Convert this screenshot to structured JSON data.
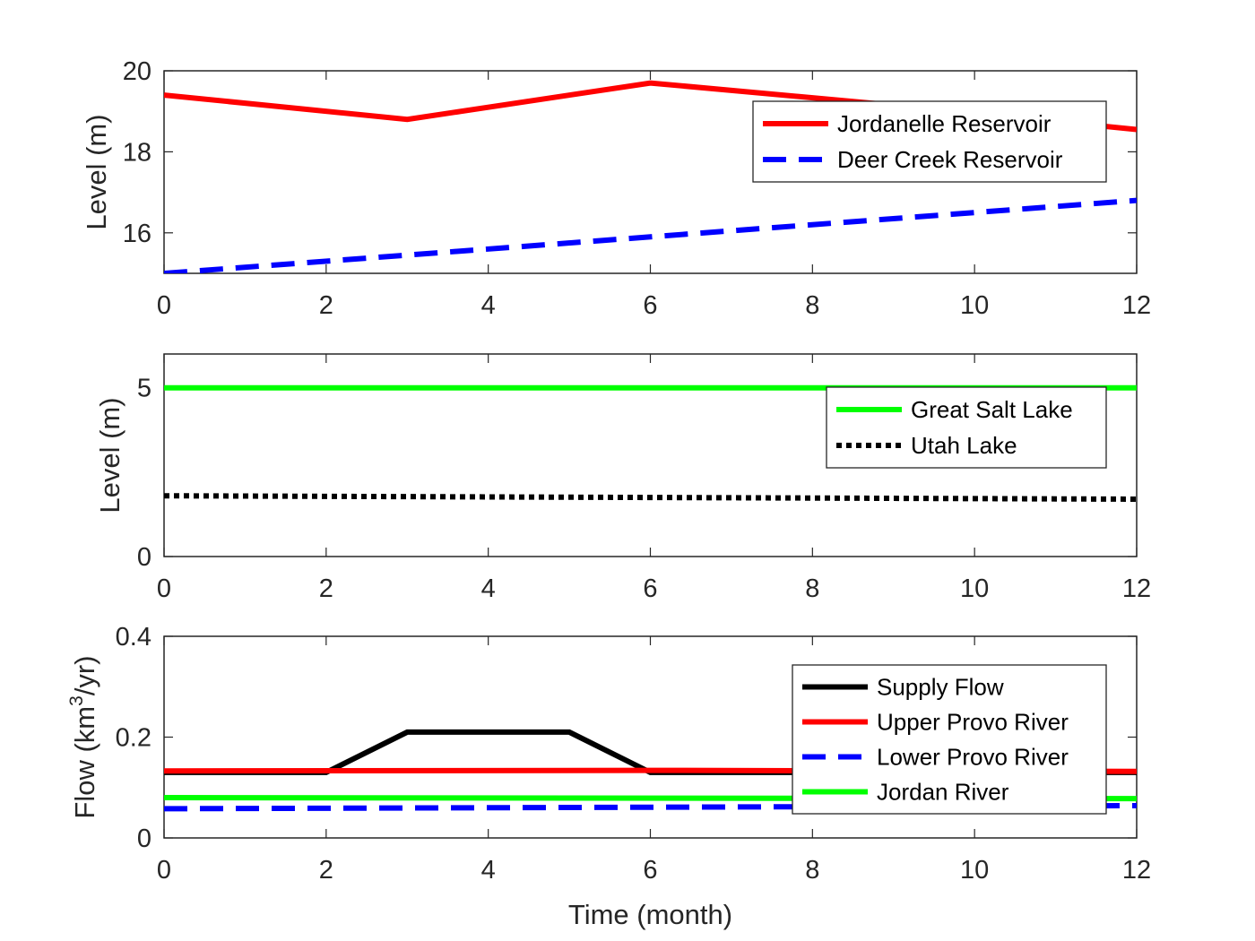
{
  "chart_data": [
    {
      "type": "line",
      "xlabel": "",
      "ylabel": "Level (m)",
      "xlim": [
        0,
        12
      ],
      "ylim": [
        15,
        20
      ],
      "xticks": [
        "0",
        "2",
        "4",
        "6",
        "8",
        "10",
        "12"
      ],
      "yticks": [
        "16",
        "18",
        "20"
      ],
      "grid": false,
      "legend_position": "top-right",
      "series": [
        {
          "name": "Jordanelle Reservoir",
          "color": "#ff0000",
          "style": "solid",
          "x": [
            0,
            3,
            6,
            9,
            12
          ],
          "y": [
            19.4,
            18.8,
            19.7,
            19.15,
            18.55
          ]
        },
        {
          "name": "Deer Creek Reservoir",
          "color": "#0000ff",
          "style": "dashed",
          "x": [
            0,
            12
          ],
          "y": [
            15.0,
            16.8
          ]
        }
      ]
    },
    {
      "type": "line",
      "xlabel": "",
      "ylabel": "Level (m)",
      "xlim": [
        0,
        12
      ],
      "ylim": [
        0,
        6
      ],
      "xticks": [
        "0",
        "2",
        "4",
        "6",
        "8",
        "10",
        "12"
      ],
      "yticks": [
        "0",
        "5"
      ],
      "grid": false,
      "legend_position": "top-right",
      "series": [
        {
          "name": "Great Salt Lake",
          "color": "#00ff00",
          "style": "solid",
          "x": [
            0,
            12
          ],
          "y": [
            5.0,
            5.0
          ]
        },
        {
          "name": "Utah Lake",
          "color": "#000000",
          "style": "dotted",
          "x": [
            0,
            12
          ],
          "y": [
            1.8,
            1.7
          ]
        }
      ]
    },
    {
      "type": "line",
      "xlabel": "Time (month)",
      "ylabel_main": "Flow (km",
      "ylabel_sup": "3",
      "ylabel_tail": "/yr)",
      "xlim": [
        0,
        12
      ],
      "ylim": [
        0,
        0.4
      ],
      "xticks": [
        "0",
        "2",
        "4",
        "6",
        "8",
        "10",
        "12"
      ],
      "yticks": [
        "0",
        "0.2",
        "0.4"
      ],
      "grid": false,
      "legend_position": "top-right",
      "series": [
        {
          "name": "Supply Flow",
          "color": "#000000",
          "style": "solid",
          "x": [
            0,
            2,
            3,
            5,
            6,
            12
          ],
          "y": [
            0.13,
            0.13,
            0.21,
            0.21,
            0.13,
            0.13
          ]
        },
        {
          "name": "Upper Provo River",
          "color": "#ff0000",
          "style": "solid",
          "x": [
            0,
            6,
            12
          ],
          "y": [
            0.133,
            0.134,
            0.132
          ]
        },
        {
          "name": "Lower Provo River",
          "color": "#0000ff",
          "style": "dashed",
          "x": [
            0,
            12
          ],
          "y": [
            0.058,
            0.064
          ]
        },
        {
          "name": "Jordan River",
          "color": "#00ff00",
          "style": "solid",
          "x": [
            0,
            12
          ],
          "y": [
            0.08,
            0.078
          ]
        }
      ]
    }
  ]
}
